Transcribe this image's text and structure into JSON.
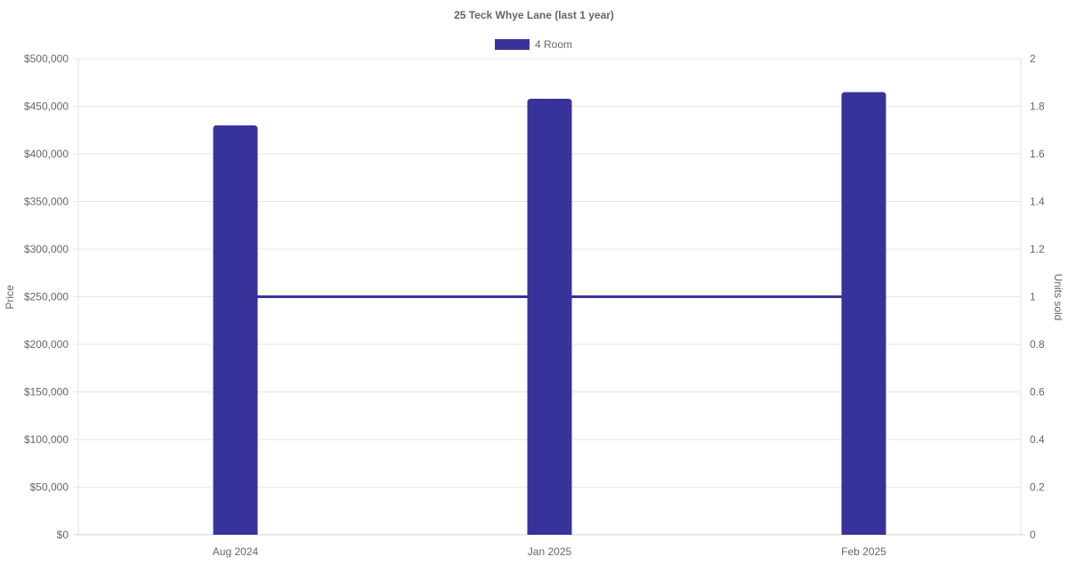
{
  "chart_data": {
    "type": "bar",
    "title": "25 Teck Whye Lane (last 1 year)",
    "categories": [
      "Aug 2024",
      "Jan 2025",
      "Feb 2025"
    ],
    "series": [
      {
        "name": "4 Room",
        "type": "bar",
        "axis": "left",
        "color": "#38339b",
        "values": [
          430000,
          458000,
          465000
        ]
      },
      {
        "type": "line",
        "axis": "right",
        "color": "#38339b",
        "values": [
          1,
          1,
          1
        ]
      }
    ],
    "ylabel": "Price",
    "ylim": [
      0,
      500000
    ],
    "y_ticks": [
      "$0",
      "$50,000",
      "$100,000",
      "$150,000",
      "$200,000",
      "$250,000",
      "$300,000",
      "$350,000",
      "$400,000",
      "$450,000",
      "$500,000"
    ],
    "y2label": "Units sold",
    "y2lim": [
      0,
      2
    ],
    "y2_ticks": [
      "0",
      "0.2",
      "0.4",
      "0.6",
      "0.8",
      "1",
      "1.2",
      "1.4",
      "1.6",
      "1.8",
      "2"
    ],
    "legend": {
      "placement": "top-center",
      "entries": [
        "4 Room"
      ]
    },
    "grid": true
  }
}
